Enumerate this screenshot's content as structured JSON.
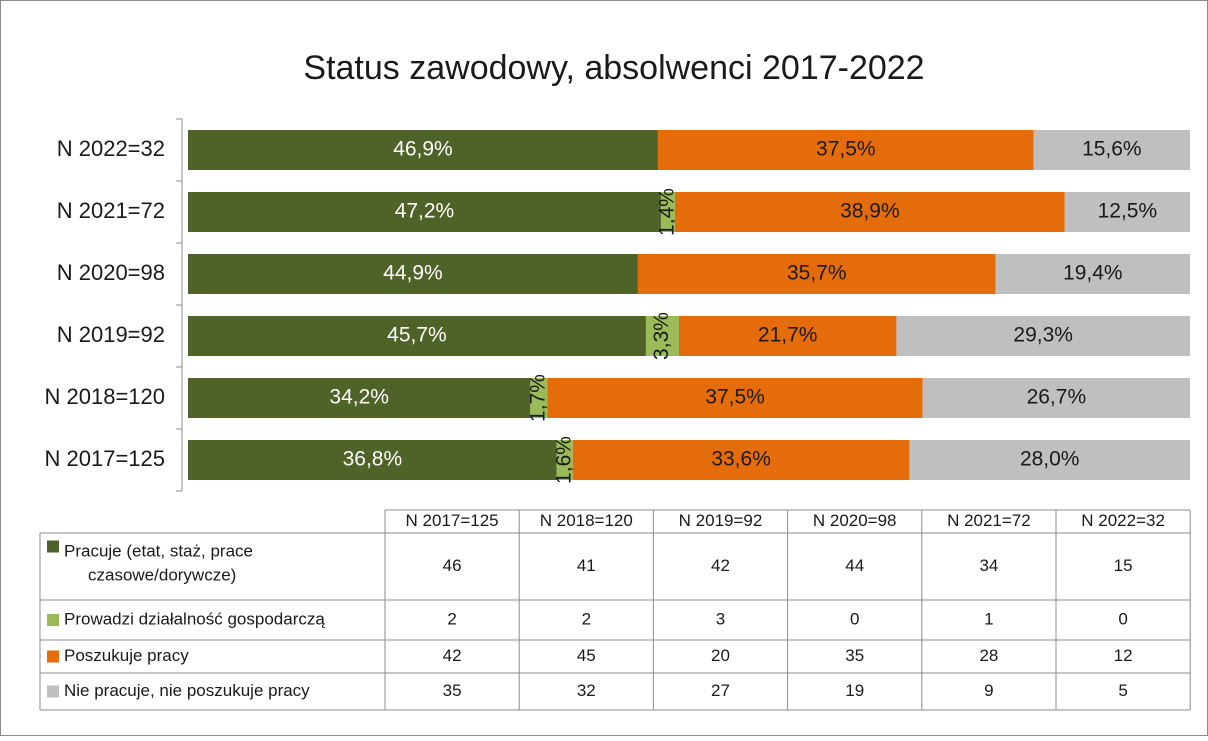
{
  "chart_data": {
    "type": "bar",
    "orientation": "horizontal",
    "stacked": "percent",
    "title": "Status zawodowy, absolwenci 2017-2022",
    "categories": [
      "N 2022=32",
      "N 2021=72",
      "N 2020=98",
      "N 2019=92",
      "N 2018=120",
      "N 2017=125"
    ],
    "series": [
      {
        "name": "Pracuje (etat, staż, prace czasowe/dorywcze)",
        "color": "#4f6228",
        "label_color": "#ffffff",
        "values": [
          46.9,
          47.2,
          44.9,
          45.7,
          34.2,
          36.8
        ],
        "value_labels": [
          "46,9%",
          "47,2%",
          "44,9%",
          "45,7%",
          "34,2%",
          "36,8%"
        ]
      },
      {
        "name": "Prowadzi działalność gospodarczą",
        "color": "#9bbb59",
        "label_color": "#1a1a1a",
        "values": [
          0,
          1.4,
          0,
          3.3,
          1.7,
          1.6
        ],
        "value_labels": [
          null,
          "1,4%",
          null,
          "3,3%",
          "1,7%",
          "1,6%"
        ]
      },
      {
        "name": "Poszukuje pracy",
        "color": "#e46c0a",
        "label_color": "#1a1a1a",
        "values": [
          37.5,
          38.9,
          35.7,
          21.7,
          37.5,
          33.6
        ],
        "value_labels": [
          "37,5%",
          "38,9%",
          "35,7%",
          "21,7%",
          "37,5%",
          "33,6%"
        ]
      },
      {
        "name": "Nie pracuje, nie poszukuje pracy",
        "color": "#bfbfbf",
        "label_color": "#1a1a1a",
        "values": [
          15.6,
          12.5,
          19.4,
          29.3,
          26.7,
          28.0
        ],
        "value_labels": [
          "15,6%",
          "12,5%",
          "19,4%",
          "29,3%",
          "26,7%",
          "28,0%"
        ]
      }
    ],
    "table": {
      "columns": [
        "N 2017=125",
        "N 2018=120",
        "N 2019=92",
        "N 2020=98",
        "N 2021=72",
        "N 2022=32"
      ],
      "rows": [
        [
          46,
          41,
          42,
          44,
          34,
          15
        ],
        [
          2,
          2,
          3,
          0,
          1,
          0
        ],
        [
          42,
          45,
          20,
          35,
          28,
          12
        ],
        [
          35,
          32,
          27,
          19,
          9,
          5
        ]
      ]
    }
  }
}
